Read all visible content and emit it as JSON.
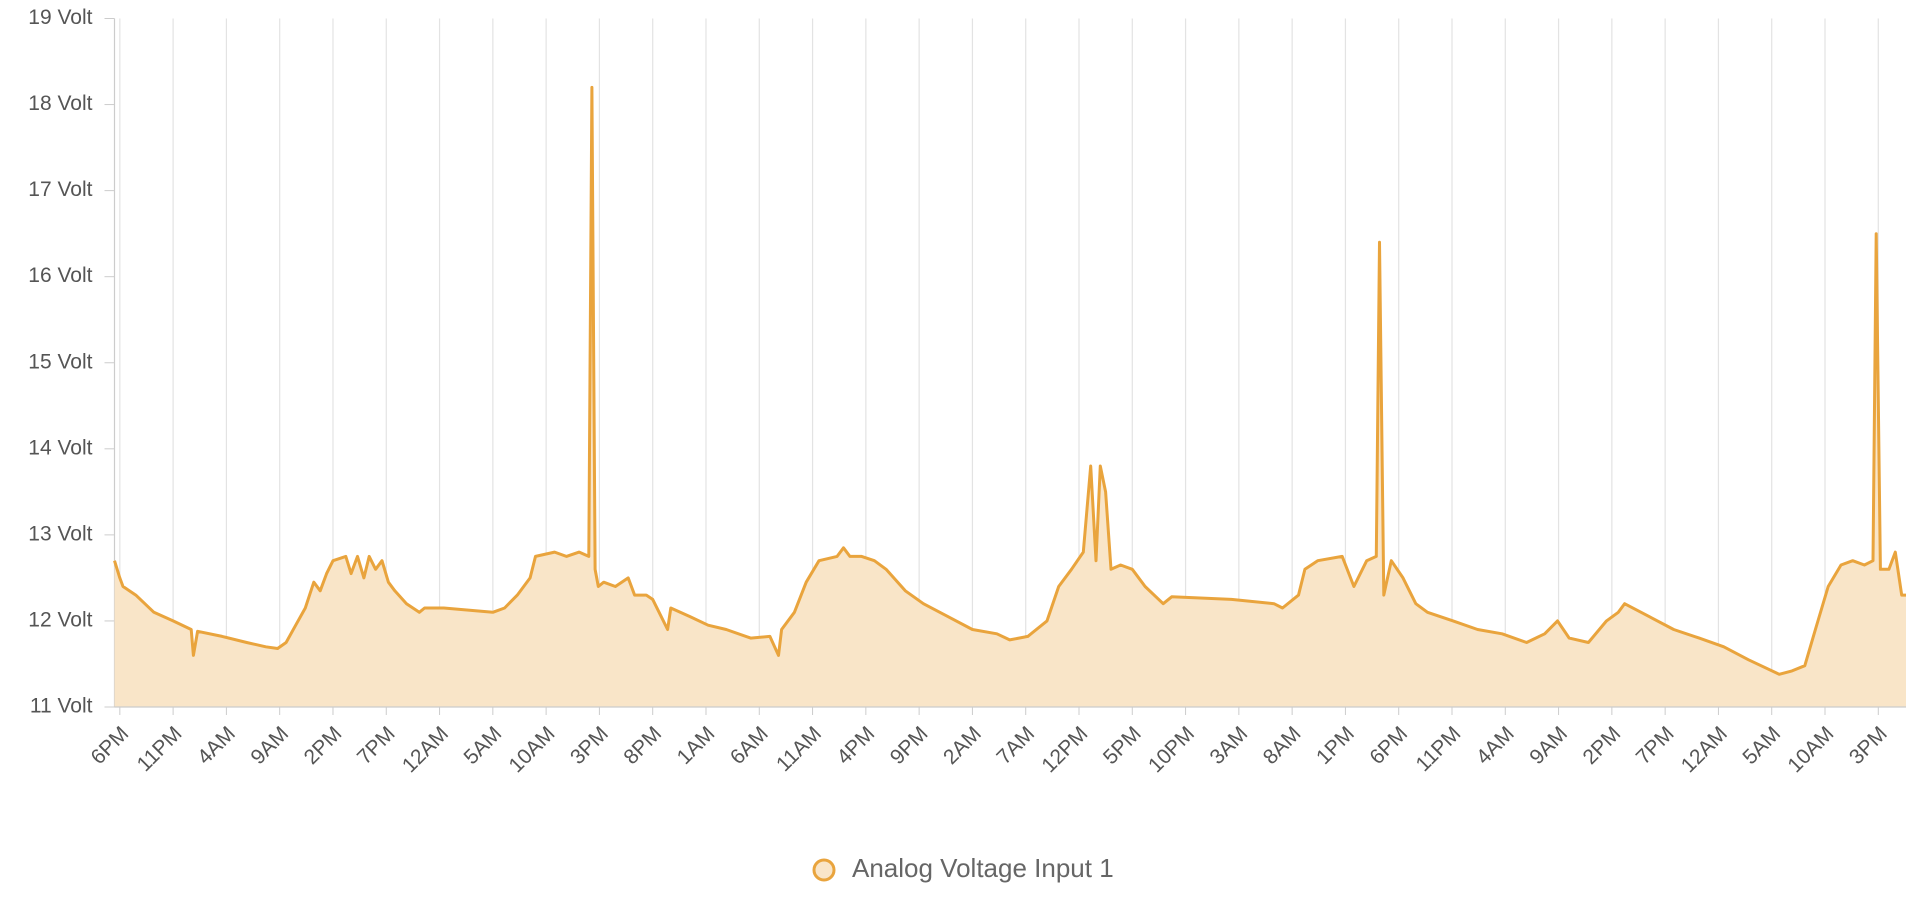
{
  "chart_data": {
    "type": "area",
    "x": [
      -0.5,
      0,
      0.3,
      1.5,
      3.2,
      5.0,
      6.7,
      6.9,
      7.3,
      9.6,
      11.9,
      13.7,
      14.8,
      15.6,
      16.5,
      17.4,
      18.2,
      18.8,
      19.4,
      20.0,
      21.2,
      21.7,
      22.3,
      22.9,
      23.4,
      24.0,
      24.6,
      25.2,
      25.8,
      26.9,
      28.1,
      28.6,
      30.4,
      35.0,
      36.1,
      37.3,
      38.5,
      39.0,
      40.8,
      41.9,
      43.1,
      44.0,
      44.3,
      44.6,
      44.9,
      45.4,
      46.5,
      47.7,
      48.3,
      49.4,
      50.0,
      50.6,
      51.4,
      51.7,
      53.5,
      55.2,
      56.9,
      59.2,
      61.0,
      61.8,
      62.1,
      63.3,
      64.4,
      65.6,
      67.3,
      67.9,
      68.5,
      69.6,
      70.8,
      71.9,
      73.7,
      75.4,
      77.7,
      80.0,
      82.3,
      83.5,
      85.2,
      87.0,
      88.1,
      89.3,
      90.4,
      91.1,
      91.6,
      92.0,
      92.5,
      93.0,
      93.9,
      95.0,
      96.2,
      97.9,
      98.7,
      104.3,
      108.3,
      109.1,
      110.6,
      111.2,
      112.4,
      114.7,
      115.8,
      117.0,
      117.9,
      118.2,
      118.6,
      119.3,
      120.4,
      121.6,
      122.7,
      125.1,
      127.4,
      129.7,
      132.0,
      133.7,
      134.9,
      136.0,
      137.8,
      139.5,
      140.6,
      141.2,
      143.5,
      145.8,
      148.2,
      150.5,
      152.8,
      155.7,
      156.9,
      158.1,
      159.1,
      160.3,
      161.5,
      162.6,
      163.7,
      164.5,
      164.8,
      165.2,
      166.0,
      166.6,
      167.2,
      167.6
    ],
    "series": [
      {
        "name": "Analog Voltage Input 1",
        "color": "#e9a43d",
        "fill": "#f9e5c8",
        "values": [
          12.7,
          12.5,
          12.4,
          12.3,
          12.1,
          12.0,
          11.9,
          11.6,
          11.88,
          11.82,
          11.75,
          11.7,
          11.68,
          11.75,
          11.95,
          12.15,
          12.45,
          12.35,
          12.55,
          12.7,
          12.75,
          12.55,
          12.75,
          12.5,
          12.75,
          12.6,
          12.7,
          12.45,
          12.35,
          12.2,
          12.1,
          12.15,
          12.15,
          12.1,
          12.15,
          12.3,
          12.5,
          12.75,
          12.8,
          12.75,
          12.8,
          12.75,
          18.2,
          12.6,
          12.4,
          12.45,
          12.4,
          12.5,
          12.3,
          12.3,
          12.25,
          12.1,
          11.9,
          12.15,
          12.05,
          11.95,
          11.9,
          11.8,
          11.82,
          11.6,
          11.9,
          12.1,
          12.45,
          12.7,
          12.75,
          12.85,
          12.75,
          12.75,
          12.7,
          12.6,
          12.35,
          12.2,
          12.05,
          11.9,
          11.85,
          11.78,
          11.82,
          12.0,
          12.4,
          12.6,
          12.8,
          13.8,
          12.7,
          13.8,
          13.5,
          12.6,
          12.65,
          12.6,
          12.4,
          12.2,
          12.28,
          12.25,
          12.2,
          12.15,
          12.3,
          12.6,
          12.7,
          12.75,
          12.4,
          12.7,
          12.75,
          16.4,
          12.3,
          12.7,
          12.5,
          12.2,
          12.1,
          12.0,
          11.9,
          11.85,
          11.75,
          11.85,
          12.0,
          11.8,
          11.75,
          12.0,
          12.1,
          12.2,
          12.05,
          11.9,
          11.8,
          11.7,
          11.55,
          11.38,
          11.42,
          11.48,
          11.9,
          12.4,
          12.65,
          12.7,
          12.65,
          12.7,
          16.5,
          12.6,
          12.6,
          12.8,
          12.3,
          12.3
        ]
      }
    ],
    "xlim": [
      -0.5,
      167.6
    ],
    "xticks": [
      {
        "value": 0,
        "label": "6PM"
      },
      {
        "value": 5,
        "label": "11PM"
      },
      {
        "value": 10,
        "label": "4AM"
      },
      {
        "value": 15,
        "label": "9AM"
      },
      {
        "value": 20,
        "label": "2PM"
      },
      {
        "value": 25,
        "label": "7PM"
      },
      {
        "value": 30,
        "label": "12AM"
      },
      {
        "value": 35,
        "label": "5AM"
      },
      {
        "value": 40,
        "label": "10AM"
      },
      {
        "value": 45,
        "label": "3PM"
      },
      {
        "value": 50,
        "label": "8PM"
      },
      {
        "value": 55,
        "label": "1AM"
      },
      {
        "value": 60,
        "label": "6AM"
      },
      {
        "value": 65,
        "label": "11AM"
      },
      {
        "value": 70,
        "label": "4PM"
      },
      {
        "value": 75,
        "label": "9PM"
      },
      {
        "value": 80,
        "label": "2AM"
      },
      {
        "value": 85,
        "label": "7AM"
      },
      {
        "value": 90,
        "label": "12PM"
      },
      {
        "value": 95,
        "label": "5PM"
      },
      {
        "value": 100,
        "label": "10PM"
      },
      {
        "value": 105,
        "label": "3AM"
      },
      {
        "value": 110,
        "label": "8AM"
      },
      {
        "value": 115,
        "label": "1PM"
      },
      {
        "value": 120,
        "label": "6PM"
      },
      {
        "value": 125,
        "label": "11PM"
      },
      {
        "value": 130,
        "label": "4AM"
      },
      {
        "value": 135,
        "label": "9AM"
      },
      {
        "value": 140,
        "label": "2PM"
      },
      {
        "value": 145,
        "label": "7PM"
      },
      {
        "value": 150,
        "label": "12AM"
      },
      {
        "value": 155,
        "label": "5AM"
      },
      {
        "value": 160,
        "label": "10AM"
      },
      {
        "value": 165,
        "label": "3PM"
      }
    ],
    "ylim": [
      11,
      19
    ],
    "yticks": [
      {
        "value": 11,
        "label": "11 Volt"
      },
      {
        "value": 12,
        "label": "12 Volt"
      },
      {
        "value": 13,
        "label": "13 Volt"
      },
      {
        "value": 14,
        "label": "14 Volt"
      },
      {
        "value": 15,
        "label": "15 Volt"
      },
      {
        "value": 16,
        "label": "16 Volt"
      },
      {
        "value": 17,
        "label": "17 Volt"
      },
      {
        "value": 18,
        "label": "18 Volt"
      },
      {
        "value": 19,
        "label": "19 Volt"
      }
    ],
    "grid": "x",
    "legend": "bottom"
  }
}
